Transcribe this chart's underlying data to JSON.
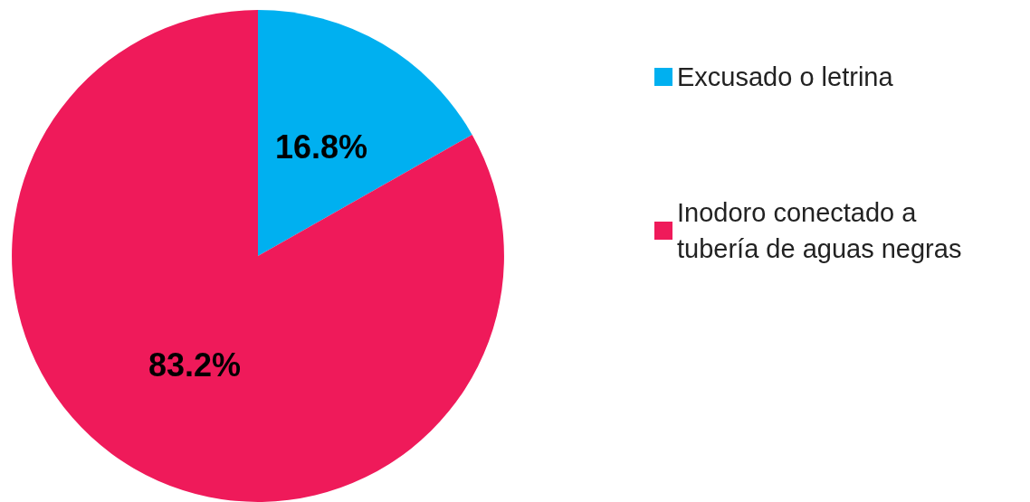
{
  "chart_data": {
    "type": "pie",
    "categories": [
      "Excusado o letrina",
      "Inodoro conectado a tubería de aguas negras"
    ],
    "values": [
      16.8,
      83.2
    ],
    "colors": [
      "#00b0f0",
      "#ef1a5a"
    ],
    "value_labels": [
      "16.8%",
      "83.2%"
    ],
    "legend": "right"
  }
}
